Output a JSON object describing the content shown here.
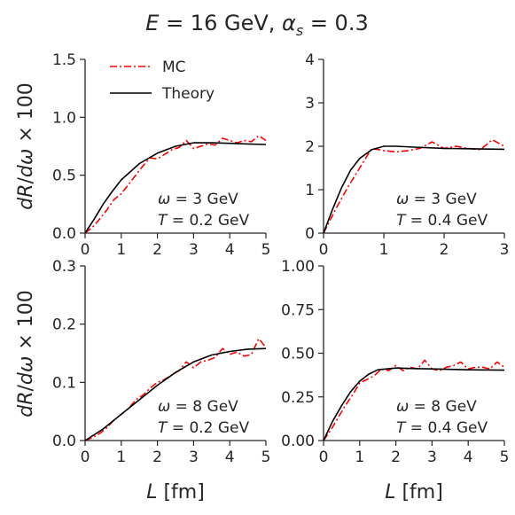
{
  "figure": {
    "title": "E = 16 GeV, α_s = 0.3",
    "ylabel": "dR/dω × 100",
    "xlabel": "L [fm]"
  },
  "legend": {
    "placement": "top-left of first panel",
    "entries": [
      {
        "label": "MC",
        "color": "#ff0000",
        "style": "dash-dot"
      },
      {
        "label": "Theory",
        "color": "#000000",
        "style": "solid"
      }
    ]
  },
  "chart_data": [
    {
      "type": "line",
      "panel": "top-left",
      "xlim": [
        0,
        5
      ],
      "ylim": [
        0,
        1.5
      ],
      "xticks": [
        "0",
        "1",
        "2",
        "3",
        "4",
        "5"
      ],
      "yticks": [
        "0.0",
        "0.5",
        "1.0",
        "1.5"
      ],
      "annotation": [
        "ω = 3 GeV",
        "T = 0.2 GeV"
      ],
      "series": [
        {
          "name": "MC",
          "x": [
            0,
            0.2,
            0.4,
            0.6,
            0.8,
            1.0,
            1.2,
            1.4,
            1.6,
            1.8,
            2.0,
            2.2,
            2.4,
            2.6,
            2.8,
            3.0,
            3.2,
            3.4,
            3.6,
            3.8,
            4.0,
            4.2,
            4.4,
            4.6,
            4.8,
            5.0
          ],
          "y": [
            0,
            0.05,
            0.12,
            0.2,
            0.29,
            0.34,
            0.42,
            0.5,
            0.58,
            0.65,
            0.64,
            0.68,
            0.72,
            0.74,
            0.8,
            0.73,
            0.75,
            0.77,
            0.76,
            0.82,
            0.8,
            0.78,
            0.8,
            0.79,
            0.84,
            0.8
          ]
        },
        {
          "name": "Theory",
          "x": [
            0,
            0.25,
            0.5,
            0.75,
            1.0,
            1.5,
            2.0,
            2.5,
            3.0,
            3.5,
            4.0,
            4.5,
            5.0
          ],
          "y": [
            0,
            0.12,
            0.25,
            0.36,
            0.46,
            0.6,
            0.69,
            0.75,
            0.78,
            0.78,
            0.775,
            0.77,
            0.765
          ]
        }
      ]
    },
    {
      "type": "line",
      "panel": "top-right",
      "xlim": [
        0,
        3
      ],
      "ylim": [
        0,
        4
      ],
      "xticks": [
        "0",
        "1",
        "2",
        "3"
      ],
      "yticks": [
        "0",
        "1",
        "2",
        "3",
        "4"
      ],
      "annotation": [
        "ω = 3 GeV",
        "T = 0.4 GeV"
      ],
      "series": [
        {
          "name": "MC",
          "x": [
            0,
            0.2,
            0.4,
            0.6,
            0.8,
            1.0,
            1.2,
            1.4,
            1.6,
            1.8,
            2.0,
            2.2,
            2.4,
            2.6,
            2.8,
            3.0
          ],
          "y": [
            0,
            0.55,
            1.05,
            1.5,
            1.95,
            1.9,
            1.87,
            1.9,
            1.95,
            2.1,
            1.95,
            2.0,
            1.95,
            1.92,
            2.15,
            2.0
          ]
        },
        {
          "name": "Theory",
          "x": [
            0,
            0.15,
            0.3,
            0.45,
            0.6,
            0.8,
            1.0,
            1.2,
            1.5,
            2.0,
            2.5,
            3.0
          ],
          "y": [
            0,
            0.55,
            1.05,
            1.45,
            1.72,
            1.92,
            2.0,
            2.0,
            1.98,
            1.95,
            1.94,
            1.93
          ]
        }
      ]
    },
    {
      "type": "line",
      "panel": "bottom-left",
      "xlim": [
        0,
        5
      ],
      "ylim": [
        0,
        0.3
      ],
      "xticks": [
        "0",
        "1",
        "2",
        "3",
        "4",
        "5"
      ],
      "yticks": [
        "0.0",
        "0.1",
        "0.2",
        "0.3"
      ],
      "annotation": [
        "ω = 8 GeV",
        "T = 0.2 GeV"
      ],
      "series": [
        {
          "name": "MC",
          "x": [
            0,
            0.2,
            0.4,
            0.6,
            0.8,
            1.0,
            1.2,
            1.4,
            1.6,
            1.8,
            2.0,
            2.2,
            2.4,
            2.6,
            2.8,
            3.0,
            3.2,
            3.4,
            3.6,
            3.8,
            4.0,
            4.2,
            4.4,
            4.6,
            4.8,
            5.0
          ],
          "y": [
            0,
            0.005,
            0.012,
            0.022,
            0.035,
            0.045,
            0.055,
            0.07,
            0.078,
            0.09,
            0.1,
            0.105,
            0.113,
            0.12,
            0.135,
            0.125,
            0.135,
            0.138,
            0.143,
            0.158,
            0.148,
            0.152,
            0.145,
            0.148,
            0.175,
            0.16
          ]
        },
        {
          "name": "Theory",
          "x": [
            0,
            0.5,
            1.0,
            1.5,
            2.0,
            2.5,
            3.0,
            3.5,
            4.0,
            4.5,
            5.0
          ],
          "y": [
            0,
            0.02,
            0.045,
            0.07,
            0.095,
            0.117,
            0.135,
            0.147,
            0.153,
            0.157,
            0.158
          ]
        }
      ]
    },
    {
      "type": "line",
      "panel": "bottom-right",
      "xlim": [
        0,
        5
      ],
      "ylim": [
        0,
        1.0
      ],
      "xticks": [
        "0",
        "1",
        "2",
        "3",
        "4",
        "5"
      ],
      "yticks": [
        "0.00",
        "0.25",
        "0.50",
        "0.75",
        "1.00"
      ],
      "annotation": [
        "ω = 8 GeV",
        "T = 0.4 GeV"
      ],
      "series": [
        {
          "name": "MC",
          "x": [
            0,
            0.2,
            0.4,
            0.6,
            0.8,
            1.0,
            1.2,
            1.4,
            1.6,
            1.8,
            2.0,
            2.2,
            2.4,
            2.6,
            2.8,
            3.0,
            3.2,
            3.4,
            3.6,
            3.8,
            4.0,
            4.2,
            4.4,
            4.6,
            4.8,
            5.0
          ],
          "y": [
            0,
            0.06,
            0.13,
            0.2,
            0.26,
            0.33,
            0.35,
            0.37,
            0.41,
            0.4,
            0.43,
            0.4,
            0.42,
            0.41,
            0.46,
            0.41,
            0.4,
            0.42,
            0.43,
            0.45,
            0.41,
            0.42,
            0.42,
            0.41,
            0.45,
            0.42
          ]
        },
        {
          "name": "Theory",
          "x": [
            0,
            0.25,
            0.5,
            0.75,
            1.0,
            1.25,
            1.5,
            2.0,
            2.5,
            3.0,
            4.0,
            5.0
          ],
          "y": [
            0,
            0.11,
            0.2,
            0.28,
            0.34,
            0.38,
            0.405,
            0.415,
            0.412,
            0.41,
            0.405,
            0.403
          ]
        }
      ]
    }
  ]
}
